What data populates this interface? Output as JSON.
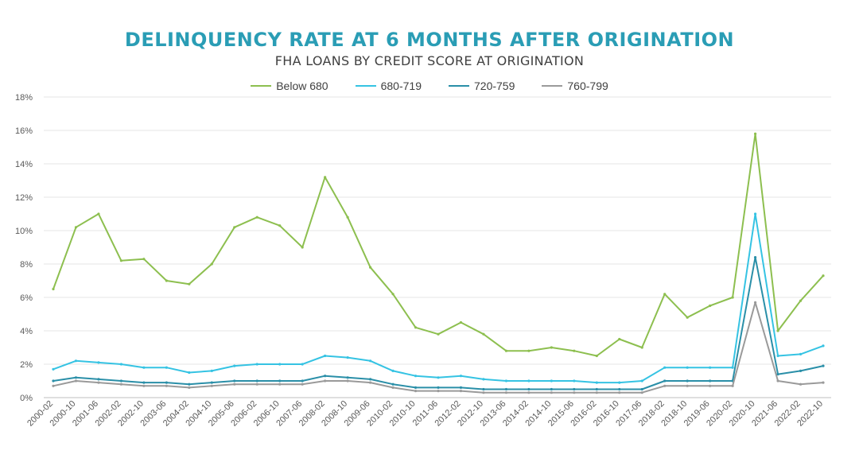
{
  "chart_data": {
    "type": "line",
    "title": "DELINQUENCY RATE AT 6 MONTHS AFTER ORIGINATION",
    "subtitle": "FHA LOANS BY CREDIT SCORE AT ORIGINATION",
    "title_color": "#2a9db5",
    "xlabel": "",
    "ylabel": "",
    "ylim": [
      0,
      18
    ],
    "grid": true,
    "legend_position": "top",
    "yticks": [
      "0%",
      "2%",
      "4%",
      "6%",
      "8%",
      "10%",
      "12%",
      "14%",
      "16%",
      "18%"
    ],
    "xticks": [
      "2000-02",
      "2000-10",
      "2001-06",
      "2002-02",
      "2002-10",
      "2003-06",
      "2004-02",
      "2004-10",
      "2005-06",
      "2006-02",
      "2006-10",
      "2007-06",
      "2008-02",
      "2008-10",
      "2009-06",
      "2010-02",
      "2010-10",
      "2011-06",
      "2012-02",
      "2012-10",
      "2013-06",
      "2014-02",
      "2014-10",
      "2015-06",
      "2016-02",
      "2016-10",
      "2017-06",
      "2018-02",
      "2018-10",
      "2019-06",
      "2020-02",
      "2020-10",
      "2021-06",
      "2022-02",
      "2022-10"
    ],
    "series": [
      {
        "name": "Below 680",
        "color": "#8dbf4f",
        "values": [
          6.5,
          10.2,
          11.0,
          8.2,
          8.3,
          7.0,
          6.8,
          8.0,
          10.2,
          10.8,
          10.3,
          9.0,
          13.2,
          10.8,
          7.8,
          6.2,
          4.2,
          3.8,
          4.5,
          3.8,
          2.8,
          2.8,
          3.0,
          2.8,
          2.5,
          3.5,
          3.0,
          6.2,
          4.8,
          5.5,
          6.0,
          15.8,
          4.0,
          5.8,
          7.3
        ]
      },
      {
        "name": "680-719",
        "color": "#35c3e3",
        "values": [
          1.7,
          2.2,
          2.1,
          2.0,
          1.8,
          1.8,
          1.5,
          1.6,
          1.9,
          2.0,
          2.0,
          2.0,
          2.5,
          2.4,
          2.2,
          1.6,
          1.3,
          1.2,
          1.3,
          1.1,
          1.0,
          1.0,
          1.0,
          1.0,
          0.9,
          0.9,
          1.0,
          1.8,
          1.8,
          1.8,
          1.8,
          11.0,
          2.5,
          2.6,
          3.1
        ]
      },
      {
        "name": "720-759",
        "color": "#2a8fa8",
        "values": [
          1.0,
          1.2,
          1.1,
          1.0,
          0.9,
          0.9,
          0.8,
          0.9,
          1.0,
          1.0,
          1.0,
          1.0,
          1.3,
          1.2,
          1.1,
          0.8,
          0.6,
          0.6,
          0.6,
          0.5,
          0.5,
          0.5,
          0.5,
          0.5,
          0.5,
          0.5,
          0.5,
          1.0,
          1.0,
          1.0,
          1.0,
          8.4,
          1.4,
          1.6,
          1.9
        ]
      },
      {
        "name": "760-799",
        "color": "#9a9a9a",
        "values": [
          0.7,
          1.0,
          0.9,
          0.8,
          0.7,
          0.7,
          0.6,
          0.7,
          0.8,
          0.8,
          0.8,
          0.8,
          1.0,
          1.0,
          0.9,
          0.6,
          0.4,
          0.4,
          0.4,
          0.3,
          0.3,
          0.3,
          0.3,
          0.3,
          0.3,
          0.3,
          0.3,
          0.7,
          0.7,
          0.7,
          0.7,
          5.7,
          1.0,
          0.8,
          0.9
        ]
      }
    ]
  }
}
